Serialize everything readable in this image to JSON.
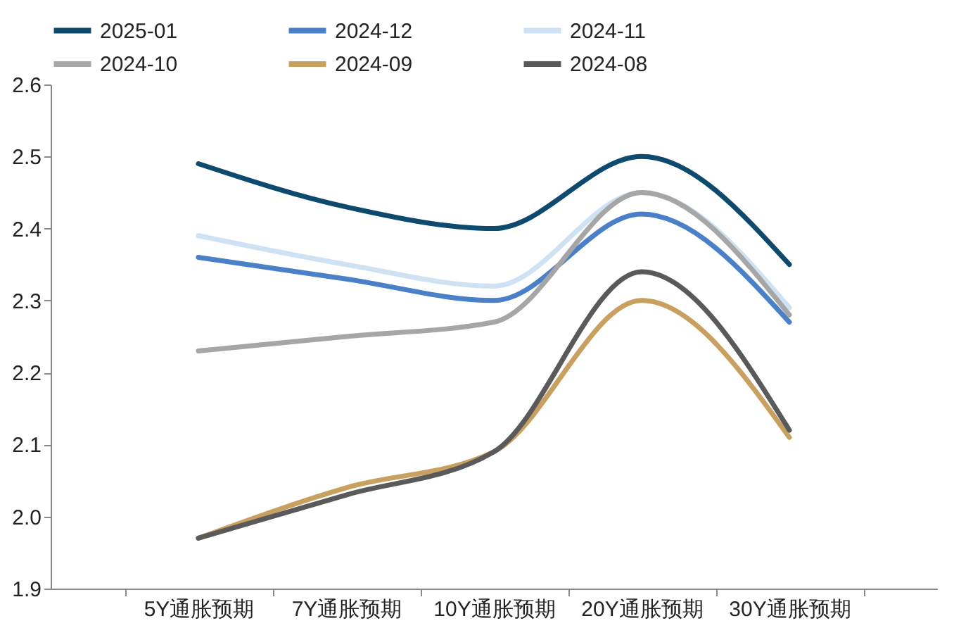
{
  "chart_data": {
    "type": "line",
    "categories": [
      "5Y通胀预期",
      "7Y通胀预期",
      "10Y通胀预期",
      "20Y通胀预期",
      "30Y通胀预期"
    ],
    "series": [
      {
        "name": "2025-01",
        "color": "#0d4a6e",
        "values": [
          2.49,
          2.43,
          2.4,
          2.5,
          2.35
        ]
      },
      {
        "name": "2024-12",
        "color": "#4a80c8",
        "values": [
          2.36,
          2.33,
          2.3,
          2.42,
          2.27
        ]
      },
      {
        "name": "2024-11",
        "color": "#cfe2f3",
        "values": [
          2.39,
          2.35,
          2.32,
          2.45,
          2.29
        ]
      },
      {
        "name": "2024-10",
        "color": "#a6a6a6",
        "values": [
          2.23,
          2.25,
          2.27,
          2.45,
          2.28
        ]
      },
      {
        "name": "2024-09",
        "color": "#c8a060",
        "values": [
          1.97,
          2.04,
          2.09,
          2.3,
          2.11
        ]
      },
      {
        "name": "2024-08",
        "color": "#5a5a5a",
        "values": [
          1.97,
          2.03,
          2.09,
          2.34,
          2.12
        ]
      }
    ],
    "ylim": [
      1.9,
      2.6
    ],
    "yticks": [
      1.9,
      {
        "value": 2,
        "label": "2.0"
      },
      2.1,
      2.2,
      2.3,
      2.4,
      2.5,
      2.6
    ],
    "grid": false,
    "legend": "top",
    "marker": "none",
    "line_style": "solid"
  }
}
